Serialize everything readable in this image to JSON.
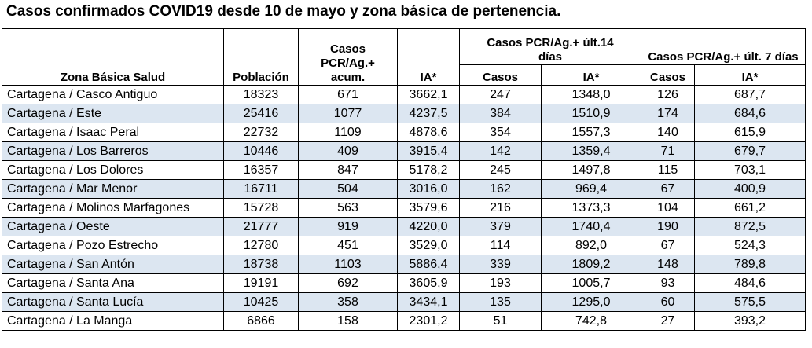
{
  "title": "Casos confirmados COVID19 desde 10 de mayo y zona básica de pertenencia.",
  "headers": {
    "zona": "Zona Básica Salud",
    "poblacion": "Población",
    "casos_acum_l1": "Casos",
    "casos_acum_l2": "PCR/Ag.+",
    "casos_acum_l3": "acum.",
    "ia": "IA*",
    "group14_l1": "Casos PCR/Ag.+ últ.14",
    "group14_l2": "días",
    "casos14": "Casos",
    "ia14": "IA*",
    "group7": "Casos PCR/Ag.+ últ. 7 días",
    "casos7": "Casos",
    "ia7": "IA*"
  },
  "rows": [
    {
      "zona": "Cartagena / Casco Antiguo",
      "poblacion": "18323",
      "casos_acum": "671",
      "ia": "3662,1",
      "casos14": "247",
      "ia14": "1348,0",
      "casos7": "126",
      "ia7": "687,7"
    },
    {
      "zona": "Cartagena / Este",
      "poblacion": "25416",
      "casos_acum": "1077",
      "ia": "4237,5",
      "casos14": "384",
      "ia14": "1510,9",
      "casos7": "174",
      "ia7": "684,6"
    },
    {
      "zona": "Cartagena / Isaac Peral",
      "poblacion": "22732",
      "casos_acum": "1109",
      "ia": "4878,6",
      "casos14": "354",
      "ia14": "1557,3",
      "casos7": "140",
      "ia7": "615,9"
    },
    {
      "zona": "Cartagena / Los Barreros",
      "poblacion": "10446",
      "casos_acum": "409",
      "ia": "3915,4",
      "casos14": "142",
      "ia14": "1359,4",
      "casos7": "71",
      "ia7": "679,7"
    },
    {
      "zona": "Cartagena / Los Dolores",
      "poblacion": "16357",
      "casos_acum": "847",
      "ia": "5178,2",
      "casos14": "245",
      "ia14": "1497,8",
      "casos7": "115",
      "ia7": "703,1"
    },
    {
      "zona": "Cartagena / Mar Menor",
      "poblacion": "16711",
      "casos_acum": "504",
      "ia": "3016,0",
      "casos14": "162",
      "ia14": "969,4",
      "casos7": "67",
      "ia7": "400,9"
    },
    {
      "zona": "Cartagena / Molinos Marfagones",
      "poblacion": "15728",
      "casos_acum": "563",
      "ia": "3579,6",
      "casos14": "216",
      "ia14": "1373,3",
      "casos7": "104",
      "ia7": "661,2"
    },
    {
      "zona": "Cartagena / Oeste",
      "poblacion": "21777",
      "casos_acum": "919",
      "ia": "4220,0",
      "casos14": "379",
      "ia14": "1740,4",
      "casos7": "190",
      "ia7": "872,5"
    },
    {
      "zona": "Cartagena / Pozo Estrecho",
      "poblacion": "12780",
      "casos_acum": "451",
      "ia": "3529,0",
      "casos14": "114",
      "ia14": "892,0",
      "casos7": "67",
      "ia7": "524,3"
    },
    {
      "zona": "Cartagena / San Antón",
      "poblacion": "18738",
      "casos_acum": "1103",
      "ia": "5886,4",
      "casos14": "339",
      "ia14": "1809,2",
      "casos7": "148",
      "ia7": "789,8"
    },
    {
      "zona": "Cartagena / Santa Ana",
      "poblacion": "19191",
      "casos_acum": "692",
      "ia": "3605,9",
      "casos14": "193",
      "ia14": "1005,7",
      "casos7": "93",
      "ia7": "484,6"
    },
    {
      "zona": "Cartagena / Santa Lucía",
      "poblacion": "10425",
      "casos_acum": "358",
      "ia": "3434,1",
      "casos14": "135",
      "ia14": "1295,0",
      "casos7": "60",
      "ia7": "575,5"
    },
    {
      "zona": "Cartagena / La Manga",
      "poblacion": "6866",
      "casos_acum": "158",
      "ia": "2301,2",
      "casos14": "51",
      "ia14": "742,8",
      "casos7": "27",
      "ia7": "393,2"
    }
  ],
  "colors": {
    "alt_row": "#dce6f1",
    "border": "#000000"
  }
}
